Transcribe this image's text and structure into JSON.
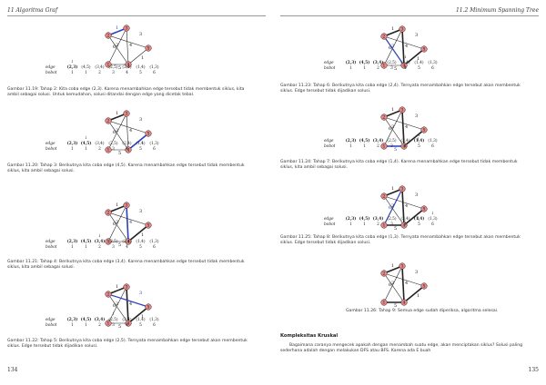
{
  "left_page": {
    "header": "11 Algoritma Graf",
    "page_number": "134"
  },
  "right_page": {
    "header": "11.2  Minimum Spanning Tree",
    "page_number": "135"
  },
  "edge_table": {
    "row1_label": "edge",
    "row2_label": "bobot",
    "edges": [
      "(2,3)",
      "(4,5)",
      "(3,4)",
      "(2,5)",
      "(2,4)",
      "(1,4)",
      "(1,3)"
    ],
    "weights": [
      "1",
      "1",
      "2",
      "3",
      "4",
      "5",
      "6"
    ]
  },
  "figures": [
    {
      "id": "11.19",
      "caption": "Gambar 11.19: Tahap 2: Kita coba edge (2,3). Karena menambahkan edge tersebut tidak membentuk siklus, kita ambil sebagai solusi. Untuk kemudahan, solusi ditandai dengan edge yang dicetak tebal.",
      "pointer_col": 0,
      "bold_col": 0
    },
    {
      "id": "11.20",
      "caption": "Gambar 11.20: Tahap 3: Berikutnya kita coba edge (4,5). Karena menambahkan edge tersebut tidak membentuk siklus, kita ambil sebagai solusi.",
      "pointer_col": 1,
      "bold_col": 1
    },
    {
      "id": "11.21",
      "caption": "Gambar 11.21: Tahap 4: Berikutnya kita coba edge (3,4). Karena menambahkan edge tersebut tidak membentuk siklus, kita ambil sebagai solusi.",
      "pointer_col": 2,
      "bold_col": 2
    },
    {
      "id": "11.22",
      "caption": "Gambar 11.22: Tahap 5: Berikutnya kita coba edge (2,5). Ternyata menambahkan edge tersebut akan membentuk siklus. Edge tersebut tidak dijadikan solusi.",
      "pointer_col": 3,
      "bold_col": 2
    },
    {
      "id": "11.23",
      "caption": "Gambar 11.23: Tahap 6: Berikutnya kita coba edge (2,4). Ternyata menambahkan edge tersebut akan membentuk siklus. Edge tersebut tidak dijadikan solusi.",
      "pointer_col": 4,
      "bold_col": 2
    },
    {
      "id": "11.24",
      "caption": "Gambar 11.24: Tahap 7: Berikutnya kita coba edge (1,4). Karena menambahkan edge tersebut tidak membentuk siklus, kita ambil sebagai solusi.",
      "pointer_col": 5,
      "bold_col": 5
    },
    {
      "id": "11.25",
      "caption": "Gambar 11.25: Tahap 8: Berikutnya kita coba edge (1,3). Ternyata menambahkan edge tersebut akan membentuk siklus. Edge tersebut tidak dijadikan solusi.",
      "pointer_col": 6,
      "bold_col": 5
    },
    {
      "id": "11.26",
      "caption": "Gambar 11.26: Tahap 9: Semua edge sudah diperiksa, algoritma selesai.",
      "pointer_col": -1,
      "bold_col": 5
    }
  ],
  "section": {
    "title": "Kompleksitas Kruskal",
    "paragraph": "Bagaimana caranya mengecek apakah dengan menambah suatu edge, akan menciptakan siklus? Solusi paling sederhana adalah dengan melakukan DFS atau BFS. Karena ada E buah"
  },
  "graph_labels": {
    "nodes": [
      "1",
      "2",
      "3",
      "4",
      "5"
    ],
    "weights": [
      "1",
      "6",
      "2",
      "4",
      "3",
      "5",
      "1"
    ]
  }
}
